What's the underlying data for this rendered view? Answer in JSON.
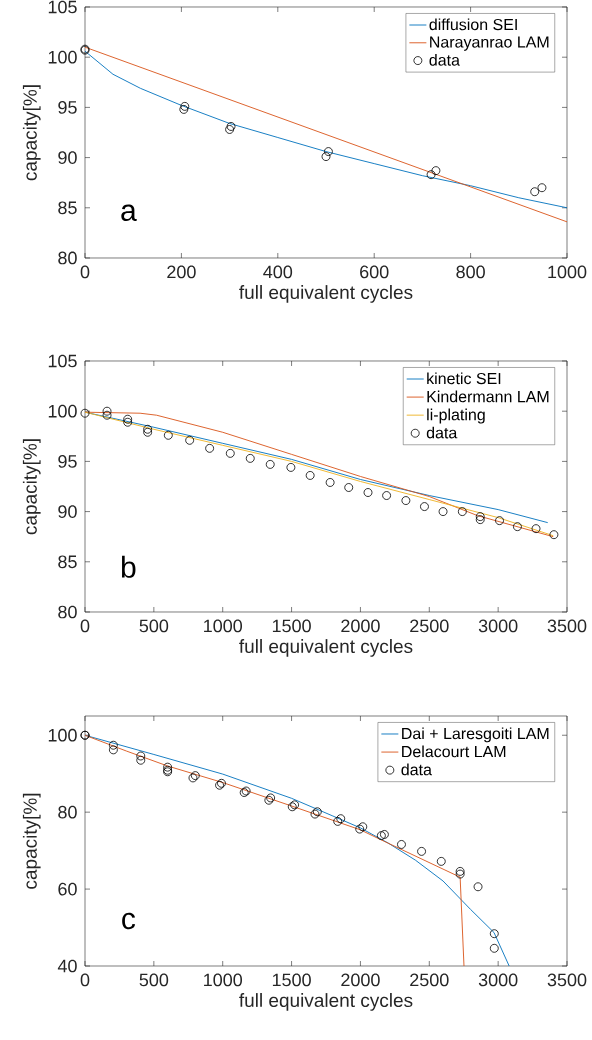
{
  "chart_data": [
    {
      "type": "line",
      "xlabel": "full equivalent cycles",
      "ylabel": "capacity[%]",
      "xlim": [
        0,
        1000
      ],
      "ylim": [
        80,
        105
      ],
      "xticks": [
        0,
        200,
        400,
        600,
        800,
        1000
      ],
      "yticks": [
        80,
        85,
        90,
        95,
        100,
        105
      ],
      "legend": "top right",
      "annotations": [
        "a"
      ],
      "series": [
        {
          "name": "diffusion SEI",
          "color": "#0072bd",
          "x": [
            0,
            58,
            115,
            200,
            300,
            400,
            500,
            600,
            700,
            800,
            900,
            1000
          ],
          "values": [
            100.6,
            98.3,
            96.9,
            95.2,
            93.4,
            92.0,
            90.6,
            89.4,
            88.2,
            87.2,
            86.0,
            85.0
          ]
        },
        {
          "name": "Narayanrao LAM",
          "color": "#d95319",
          "x": [
            0,
            1000
          ],
          "values": [
            101.0,
            83.6
          ]
        },
        {
          "name": "data",
          "type": "scatter",
          "marker": "circle",
          "color": "#000000",
          "x": [
            0,
            0,
            205,
            207,
            300,
            303,
            500,
            505,
            718,
            728,
            933,
            948
          ],
          "values": [
            100.7,
            100.8,
            94.8,
            95.1,
            92.8,
            93.1,
            90.1,
            90.6,
            88.3,
            88.7,
            86.6,
            87.0
          ]
        }
      ]
    },
    {
      "type": "line",
      "xlabel": "full equivalent cycles",
      "ylabel": "capacity[%]",
      "xlim": [
        0,
        3500
      ],
      "ylim": [
        80,
        105
      ],
      "xticks": [
        0,
        500,
        1000,
        1500,
        2000,
        2500,
        3000,
        3500
      ],
      "yticks": [
        80,
        85,
        90,
        95,
        100,
        105
      ],
      "legend": "top right",
      "annotations": [
        "b"
      ],
      "series": [
        {
          "name": "kinetic SEI",
          "color": "#0072bd",
          "x": [
            0,
            500,
            1000,
            1500,
            2000,
            2500,
            3000,
            3360
          ],
          "values": [
            99.9,
            98.4,
            96.8,
            95.2,
            93.2,
            91.6,
            90.2,
            88.9
          ]
        },
        {
          "name": "Kindermann LAM",
          "color": "#d95319",
          "x": [
            0,
            400,
            520,
            1000,
            1500,
            2000,
            2500,
            2850,
            3400
          ],
          "values": [
            99.9,
            99.8,
            99.6,
            97.9,
            95.7,
            93.5,
            91.5,
            89.6,
            87.5
          ]
        },
        {
          "name": "li-plating",
          "color": "#edb120",
          "x": [
            0,
            500,
            1000,
            1500,
            2000,
            2500,
            3000,
            3400
          ],
          "values": [
            99.9,
            98.2,
            96.6,
            95.0,
            93.0,
            91.2,
            89.4,
            87.6
          ]
        },
        {
          "name": "data",
          "type": "scatter",
          "marker": "circle",
          "color": "#000000",
          "x": [
            0,
            160,
            160,
            310,
            310,
            455,
            455,
            605,
            760,
            905,
            1055,
            1200,
            1345,
            1495,
            1635,
            1780,
            1915,
            2055,
            2190,
            2330,
            2465,
            2600,
            2740,
            2870,
            2870,
            3010,
            3140,
            3275,
            3405
          ],
          "values": [
            99.8,
            100.0,
            99.6,
            99.2,
            98.9,
            98.2,
            97.9,
            97.6,
            97.1,
            96.3,
            95.8,
            95.3,
            94.7,
            94.4,
            93.6,
            92.9,
            92.4,
            91.9,
            91.6,
            91.1,
            90.5,
            90.0,
            90.0,
            89.5,
            89.2,
            89.1,
            88.5,
            88.3,
            87.7
          ]
        }
      ]
    },
    {
      "type": "line",
      "xlabel": "full equivalent cycles",
      "ylabel": "capacity[%]",
      "xlim": [
        0,
        3500
      ],
      "ylim": [
        40,
        105
      ],
      "xticks": [
        0,
        500,
        1000,
        1500,
        2000,
        2500,
        3000,
        3500
      ],
      "yticks": [
        40,
        60,
        80,
        100
      ],
      "legend": "top right",
      "annotations": [
        "c"
      ],
      "series": [
        {
          "name": "Dai + Laresgoiti LAM",
          "color": "#0072bd",
          "x": [
            0,
            500,
            1000,
            1500,
            1800,
            2000,
            2200,
            2400,
            2600,
            2800,
            2970,
            3080
          ],
          "values": [
            100,
            95.0,
            89.9,
            83.6,
            79.0,
            75.9,
            72.0,
            67.5,
            62.1,
            54.7,
            48.7,
            40
          ]
        },
        {
          "name": "Delacourt LAM",
          "color": "#d95319",
          "x": [
            0,
            300,
            600,
            1000,
            1500,
            2000,
            2150,
            2724,
            2752
          ],
          "values": [
            100,
            95.9,
            92.0,
            87.7,
            81.6,
            75.4,
            72.8,
            63.1,
            40
          ]
        },
        {
          "name": "data",
          "type": "scatter",
          "marker": "circle",
          "color": "#000000",
          "x": [
            0,
            0,
            206,
            206,
            405,
            405,
            600,
            600,
            600,
            784,
            801,
            977,
            991,
            1156,
            1170,
            1335,
            1348,
            1505,
            1522,
            1670,
            1687,
            1835,
            1857,
            1995,
            2017,
            2152,
            2174,
            2298,
            2444,
            2587,
            2724,
            2724,
            2854,
            2972,
            2972
          ],
          "values": [
            100,
            100,
            97.4,
            96.2,
            94.6,
            93.5,
            91.7,
            90.9,
            90.5,
            88.9,
            89.5,
            87.0,
            87.5,
            85.1,
            85.5,
            83.1,
            83.7,
            81.4,
            81.9,
            79.5,
            80.1,
            77.6,
            78.3,
            75.6,
            76.2,
            73.9,
            74.2,
            71.6,
            69.8,
            67.2,
            64.6,
            63.9,
            60.6,
            48.4,
            44.6
          ]
        }
      ]
    }
  ]
}
